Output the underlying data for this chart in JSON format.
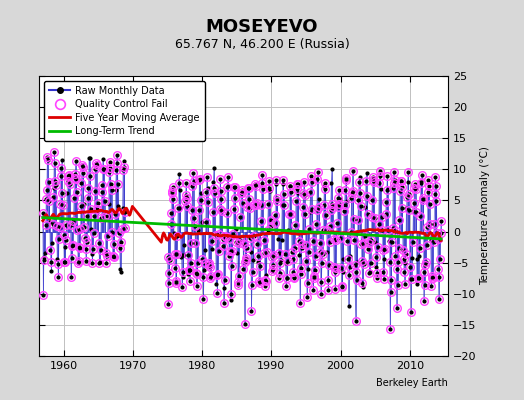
{
  "title": "MOSEYEVO",
  "subtitle": "65.767 N, 46.200 E (Russia)",
  "ylabel": "Temperature Anomaly (°C)",
  "credit": "Berkeley Earth",
  "xlim": [
    1956.5,
    2015.5
  ],
  "ylim": [
    -20,
    25
  ],
  "yticks": [
    -20,
    -15,
    -10,
    -5,
    0,
    5,
    10,
    15,
    20,
    25
  ],
  "xticks": [
    1960,
    1970,
    1980,
    1990,
    2000,
    2010
  ],
  "bg_color": "#d8d8d8",
  "plot_bg_color": "#ffffff",
  "grid_color": "#c0c0c0",
  "raw_line_color": "#3333cc",
  "raw_dot_color": "#000000",
  "qc_fail_color": "#ff44ff",
  "moving_avg_color": "#dd0000",
  "trend_color": "#00bb00",
  "seed": 7
}
